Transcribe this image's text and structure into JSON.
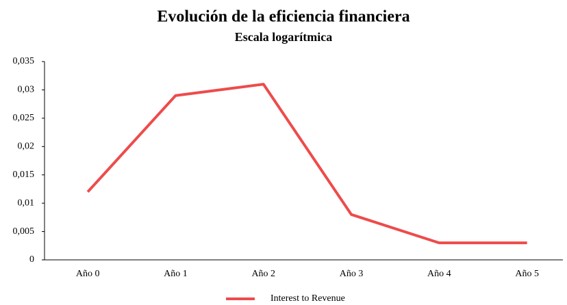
{
  "chart_data": {
    "type": "line",
    "title": "Evolución de la eficiencia financiera",
    "subtitle": "Escala logarítmica",
    "categories": [
      "Año 0",
      "Año 1",
      "Año 2",
      "Año 3",
      "Año 4",
      "Año 5"
    ],
    "series": [
      {
        "name": "Interest to Revenue",
        "color": "#ee4b4b",
        "values": [
          0.012,
          0.029,
          0.031,
          0.008,
          0.003,
          0.003
        ]
      }
    ],
    "ylim": [
      0,
      0.035
    ],
    "yticks": [
      0,
      {
        "value": 0.005,
        "label": "0,005"
      },
      {
        "value": 0.01,
        "label": "0,01"
      },
      {
        "value": 0.015,
        "label": "0,015"
      },
      {
        "value": 0.02,
        "label": "0,02"
      },
      {
        "value": 0.025,
        "label": "0,025"
      },
      {
        "value": 0.03,
        "label": "0,03"
      },
      {
        "value": 0.035,
        "label": "0,035"
      }
    ],
    "grid": false,
    "legend": "bottom"
  }
}
